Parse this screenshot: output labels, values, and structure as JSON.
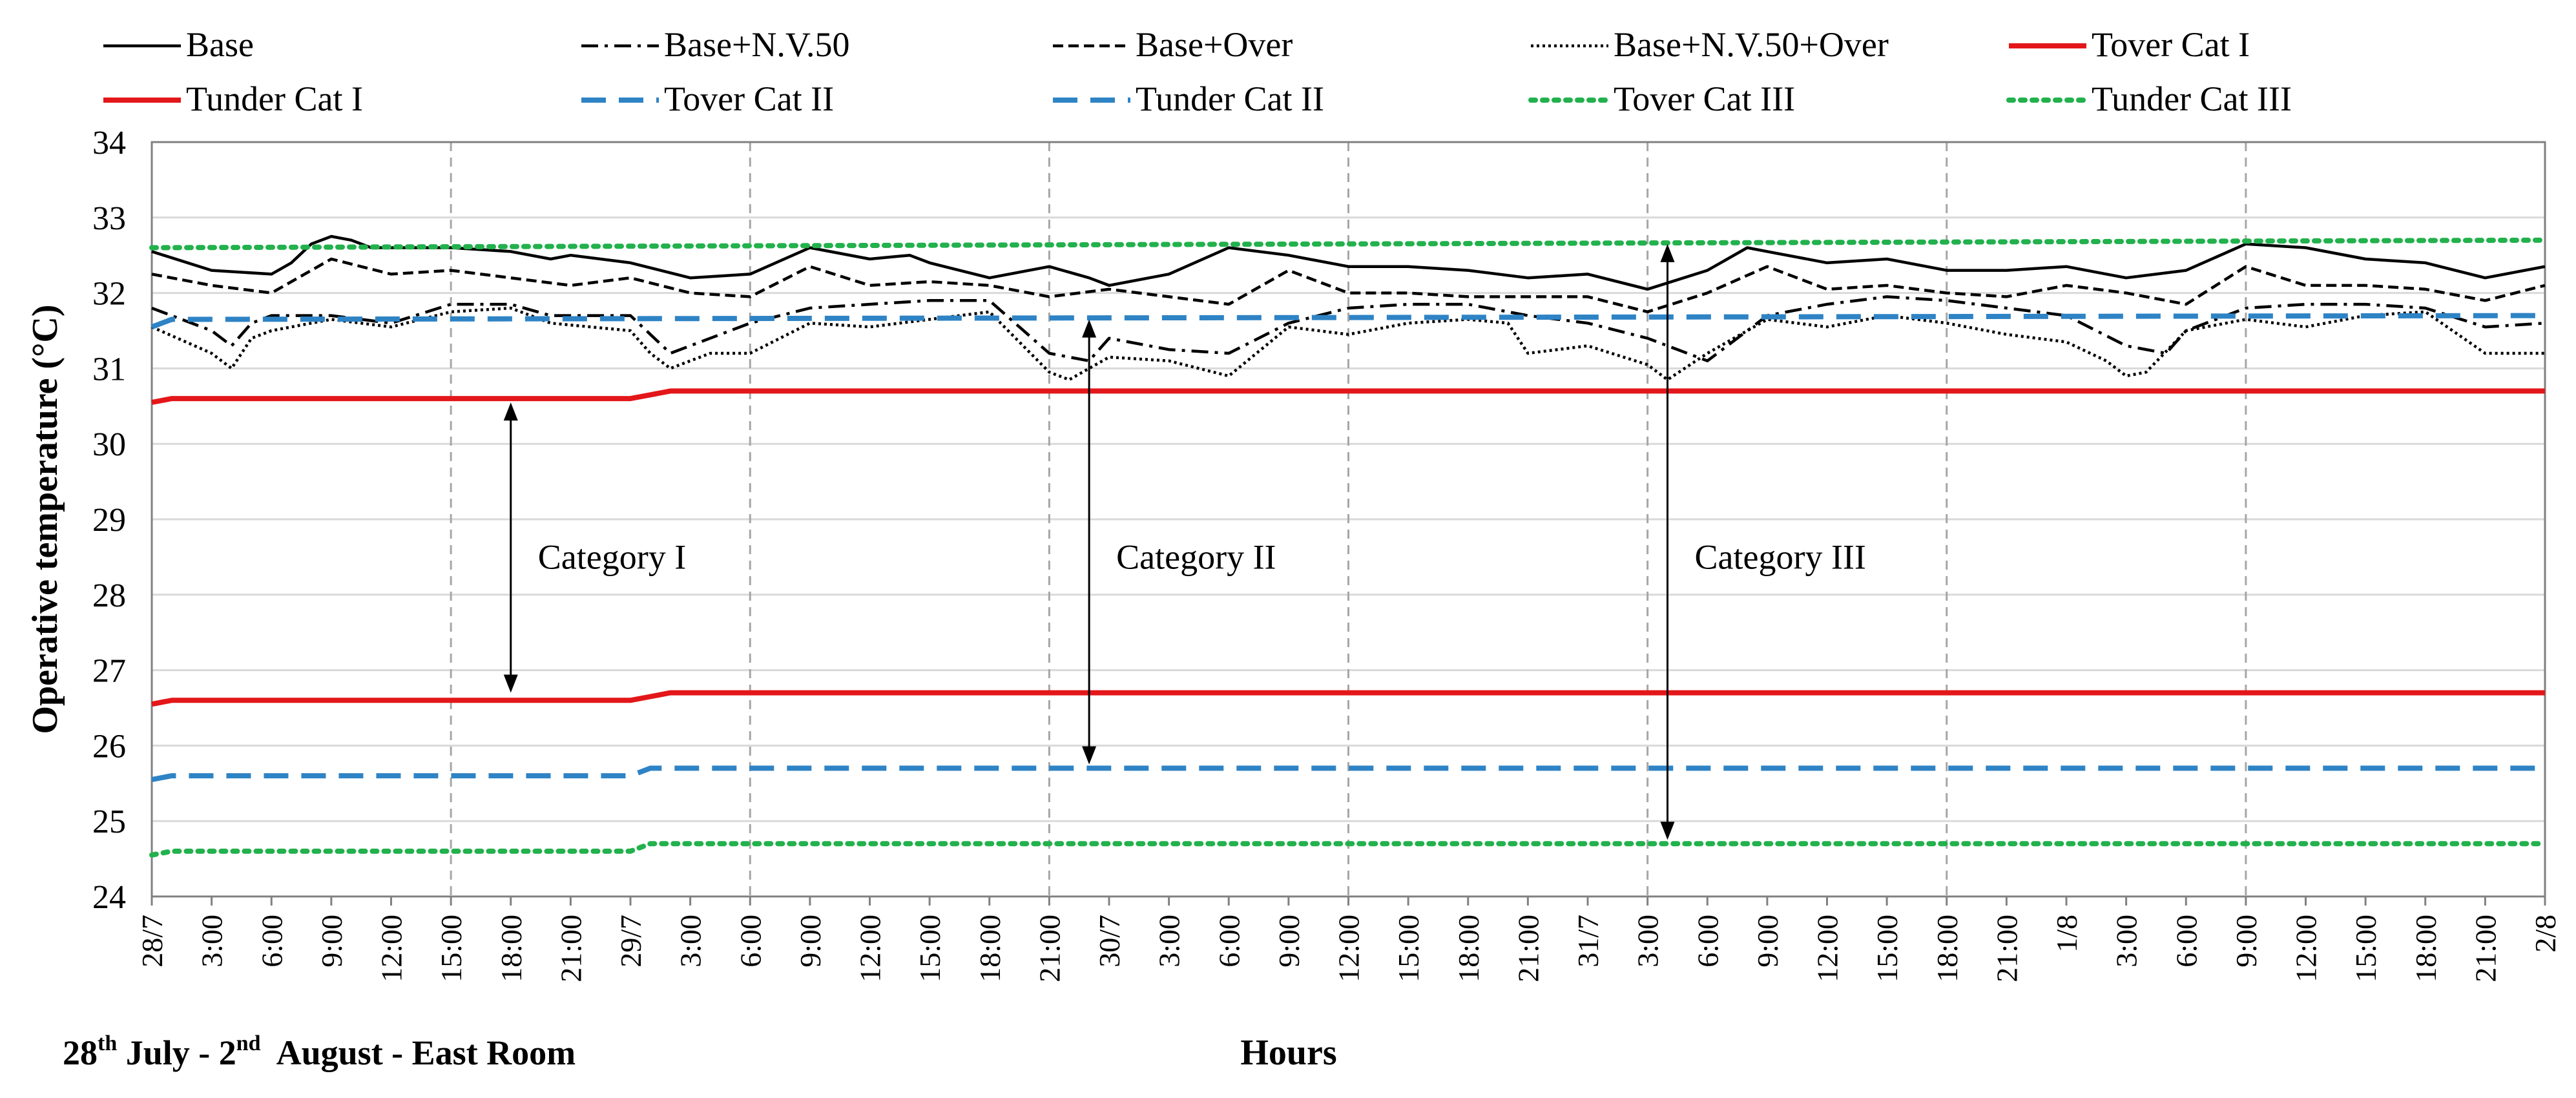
{
  "chart_data": {
    "type": "line",
    "title": "",
    "ylabel": "Operative temperature (°C)",
    "xlabel": "Hours",
    "footer_note": {
      "day_start": "28",
      "sup_start": "th",
      "mid": " July - 2",
      "sup_end": "nd",
      "tail": "  August - East Room"
    },
    "ylim": [
      24,
      34
    ],
    "yticks": [
      "24",
      "25",
      "26",
      "27",
      "28",
      "29",
      "30",
      "31",
      "32",
      "33",
      "34"
    ],
    "x_hours_total": 120,
    "x_tick_step_hours": 3,
    "x_tick_labels": [
      "28/7",
      "3:00",
      "6:00",
      "9:00",
      "12:00",
      "15:00",
      "18:00",
      "21:00",
      "29/7",
      "3:00",
      "6:00",
      "9:00",
      "12:00",
      "15:00",
      "18:00",
      "21:00",
      "30/7",
      "3:00",
      "6:00",
      "9:00",
      "12:00",
      "15:00",
      "18:00",
      "21:00",
      "31/7",
      "3:00",
      "6:00",
      "9:00",
      "12:00",
      "15:00",
      "18:00",
      "21:00",
      "1/8",
      "3:00",
      "6:00",
      "9:00",
      "12:00",
      "15:00",
      "18:00",
      "21:00",
      "2/8"
    ],
    "vertical_gridlines_hours": [
      15,
      30,
      45,
      60,
      75,
      90,
      105
    ],
    "series": [
      {
        "name": "Base",
        "color": "#000000",
        "style": "solid",
        "x": [
          0,
          3,
          6,
          7,
          8,
          9,
          10,
          11,
          12,
          15,
          18,
          20,
          21,
          24,
          27,
          30,
          33,
          36,
          38,
          39,
          42,
          45,
          47,
          48,
          51,
          54,
          57,
          60,
          63,
          66,
          69,
          72,
          75,
          78,
          80,
          81,
          84,
          87,
          90,
          93,
          96,
          99,
          102,
          105,
          108,
          111,
          114,
          117,
          120
        ],
        "values": [
          32.55,
          32.3,
          32.25,
          32.4,
          32.65,
          32.75,
          32.7,
          32.6,
          32.6,
          32.6,
          32.55,
          32.45,
          32.5,
          32.4,
          32.2,
          32.25,
          32.6,
          32.45,
          32.5,
          32.4,
          32.2,
          32.35,
          32.2,
          32.1,
          32.25,
          32.6,
          32.5,
          32.35,
          32.35,
          32.3,
          32.2,
          32.25,
          32.05,
          32.3,
          32.6,
          32.55,
          32.4,
          32.45,
          32.3,
          32.3,
          32.35,
          32.2,
          32.3,
          32.65,
          32.6,
          32.45,
          32.4,
          32.2,
          32.35
        ]
      },
      {
        "name": "Base+N.V.50",
        "color": "#000000",
        "style": "dashdot",
        "x": [
          0,
          3,
          4,
          5,
          6,
          9,
          12,
          15,
          18,
          20,
          24,
          26,
          28,
          30,
          33,
          36,
          39,
          42,
          45,
          47,
          48,
          51,
          54,
          57,
          60,
          63,
          66,
          69,
          72,
          75,
          78,
          81,
          84,
          87,
          90,
          93,
          96,
          99,
          101,
          102,
          105,
          108,
          111,
          114,
          117,
          120
        ],
        "values": [
          31.8,
          31.5,
          31.3,
          31.6,
          31.7,
          31.7,
          31.6,
          31.85,
          31.85,
          31.7,
          31.7,
          31.2,
          31.4,
          31.6,
          31.8,
          31.85,
          31.9,
          31.9,
          31.2,
          31.1,
          31.4,
          31.25,
          31.2,
          31.6,
          31.8,
          31.85,
          31.85,
          31.7,
          31.6,
          31.4,
          31.1,
          31.7,
          31.85,
          31.95,
          31.9,
          31.8,
          31.7,
          31.3,
          31.2,
          31.5,
          31.8,
          31.85,
          31.85,
          31.8,
          31.55,
          31.6
        ]
      },
      {
        "name": "Base+Over",
        "color": "#000000",
        "style": "dashed",
        "x": [
          0,
          3,
          6,
          9,
          12,
          15,
          18,
          21,
          24,
          27,
          30,
          33,
          36,
          39,
          42,
          45,
          48,
          51,
          54,
          57,
          60,
          63,
          66,
          69,
          72,
          75,
          78,
          81,
          84,
          87,
          90,
          93,
          96,
          99,
          102,
          105,
          108,
          111,
          114,
          117,
          120
        ],
        "values": [
          32.25,
          32.1,
          32.0,
          32.45,
          32.25,
          32.3,
          32.2,
          32.1,
          32.2,
          32.0,
          31.95,
          32.35,
          32.1,
          32.15,
          32.1,
          31.95,
          32.05,
          31.95,
          31.85,
          32.3,
          32.0,
          32.0,
          31.95,
          31.95,
          31.95,
          31.75,
          32.0,
          32.35,
          32.05,
          32.1,
          32.0,
          31.95,
          32.1,
          32.0,
          31.85,
          32.35,
          32.1,
          32.1,
          32.05,
          31.9,
          32.1
        ]
      },
      {
        "name": "Base+N.V.50+Over",
        "color": "#000000",
        "style": "dotted",
        "x": [
          0,
          3,
          4,
          5,
          6,
          9,
          12,
          15,
          18,
          20,
          24,
          25,
          26,
          28,
          30,
          33,
          36,
          39,
          42,
          45,
          46,
          48,
          51,
          54,
          57,
          60,
          63,
          66,
          68,
          69,
          72,
          75,
          76,
          78,
          81,
          84,
          87,
          90,
          93,
          96,
          98,
          99,
          100,
          102,
          105,
          108,
          111,
          114,
          117,
          120
        ],
        "values": [
          31.55,
          31.2,
          31.0,
          31.4,
          31.5,
          31.65,
          31.55,
          31.75,
          31.8,
          31.6,
          31.5,
          31.2,
          31.0,
          31.2,
          31.2,
          31.6,
          31.55,
          31.65,
          31.75,
          30.95,
          30.85,
          31.15,
          31.1,
          30.9,
          31.55,
          31.45,
          31.6,
          31.65,
          31.6,
          31.2,
          31.3,
          31.05,
          30.85,
          31.2,
          31.65,
          31.55,
          31.7,
          31.6,
          31.45,
          31.35,
          31.1,
          30.9,
          30.95,
          31.5,
          31.65,
          31.55,
          31.7,
          31.75,
          31.2,
          31.2
        ]
      },
      {
        "name": "Tover Cat I",
        "color": "#e3171a",
        "style": "solid",
        "x": [
          0,
          1,
          24,
          25,
          26,
          120
        ],
        "values": [
          30.55,
          30.6,
          30.6,
          30.65,
          30.7,
          30.7
        ]
      },
      {
        "name": "Tunder Cat I",
        "color": "#e3171a",
        "style": "solid",
        "x": [
          0,
          1,
          24,
          25,
          26,
          120
        ],
        "values": [
          26.55,
          26.6,
          26.6,
          26.65,
          26.7,
          26.7
        ]
      },
      {
        "name": "Tover Cat II",
        "color": "#2e83c5",
        "style": "longdash",
        "x": [
          0,
          1,
          120
        ],
        "values": [
          31.55,
          31.65,
          31.7
        ]
      },
      {
        "name": "Tunder Cat II",
        "color": "#2e83c5",
        "style": "longdash",
        "x": [
          0,
          1,
          24,
          25,
          120
        ],
        "values": [
          25.55,
          25.6,
          25.6,
          25.7,
          25.7
        ]
      },
      {
        "name": "Tover Cat III",
        "color": "#22b14c",
        "style": "dotted-heavy",
        "x": [
          0,
          120
        ],
        "values": [
          32.6,
          32.7
        ]
      },
      {
        "name": "Tunder Cat III",
        "color": "#22b14c",
        "style": "dotted-heavy",
        "x": [
          0,
          1,
          24,
          25,
          120
        ],
        "values": [
          24.55,
          24.6,
          24.6,
          24.7,
          24.7
        ]
      }
    ],
    "annotations": [
      {
        "text": "Category I",
        "x_hour": 18,
        "from": 30.6,
        "to": 26.65
      },
      {
        "text": "Category II",
        "x_hour": 47,
        "from": 31.7,
        "to": 25.7
      },
      {
        "text": "Category III",
        "x_hour": 76,
        "from": 32.7,
        "to": 24.7
      }
    ],
    "legend_placement": "top"
  }
}
